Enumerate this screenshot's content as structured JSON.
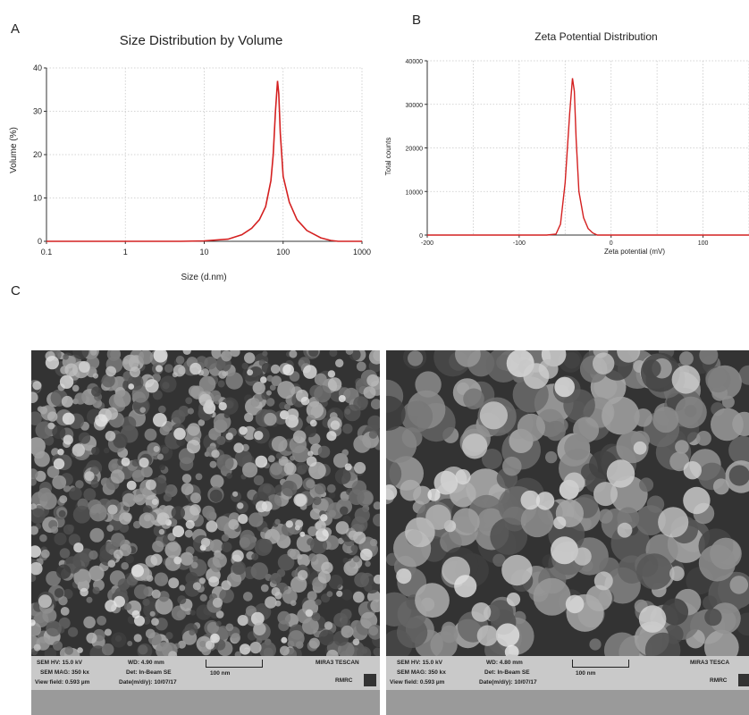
{
  "panels": {
    "a": "A",
    "b": "B",
    "c": "C"
  },
  "chart_data": [
    {
      "type": "line",
      "title": "Size Distribution by Volume",
      "xlabel": "Size (d.nm)",
      "ylabel": "Volume (%)",
      "xscale": "log",
      "xlim": [
        0.1,
        1000
      ],
      "ylim": [
        0,
        40
      ],
      "xticks": [
        "0.1",
        "1",
        "10",
        "100",
        "1000"
      ],
      "yticks": [
        "0",
        "10",
        "20",
        "30",
        "40"
      ],
      "grid": true,
      "line_color": "#d42020",
      "series": [
        {
          "x": [
            0.1,
            1,
            5,
            10,
            20,
            30,
            40,
            50,
            60,
            70,
            75,
            80,
            85,
            88,
            92,
            100,
            120,
            150,
            200,
            300,
            400,
            500,
            1000
          ],
          "y": [
            0,
            0,
            0,
            0.1,
            0.5,
            1.5,
            3,
            5,
            8,
            14,
            20,
            30,
            37,
            34,
            25,
            15,
            9,
            5,
            2.5,
            0.8,
            0.2,
            0,
            0
          ]
        }
      ]
    },
    {
      "type": "line",
      "title": "Zeta Potential Distribution",
      "xlabel": "Zeta potential (mV)",
      "ylabel": "Total counts",
      "xlim": [
        -200,
        150
      ],
      "ylim": [
        0,
        40000
      ],
      "xticks": [
        "-200",
        "-100",
        "0",
        "100"
      ],
      "yticks": [
        "0",
        "10000",
        "20000",
        "30000",
        "40000"
      ],
      "grid": true,
      "line_color": "#d42020",
      "series": [
        {
          "x": [
            -200,
            -70,
            -60,
            -55,
            -50,
            -45,
            -42,
            -40,
            -38,
            -35,
            -30,
            -25,
            -20,
            -15,
            0,
            150
          ],
          "y": [
            0,
            0,
            200,
            2500,
            12000,
            28000,
            36000,
            33000,
            22000,
            10000,
            4000,
            1500,
            500,
            0,
            0,
            0
          ]
        }
      ]
    }
  ],
  "sem_images": [
    {
      "hv": "SEM HV: 15.0 kV",
      "wd": "WD: 4.90 mm",
      "mag": "SEM MAG: 350 kx",
      "det": "Det: In-Beam SE",
      "view": "View field: 0.593 µm",
      "date": "Date(m/d/y): 10/07/17",
      "scale": "100 nm",
      "brand": "MIRA3 TESCAN",
      "lab": "RMRC"
    },
    {
      "hv": "SEM HV: 15.0 kV",
      "wd": "WD: 4.80 mm",
      "mag": "SEM MAG: 350 kx",
      "det": "Det: In-Beam SE",
      "view": "View field: 0.593 µm",
      "date": "Date(m/d/y): 10/07/17",
      "scale": "100 nm",
      "brand": "MIRA3 TESCA",
      "lab": "RMRC"
    }
  ]
}
